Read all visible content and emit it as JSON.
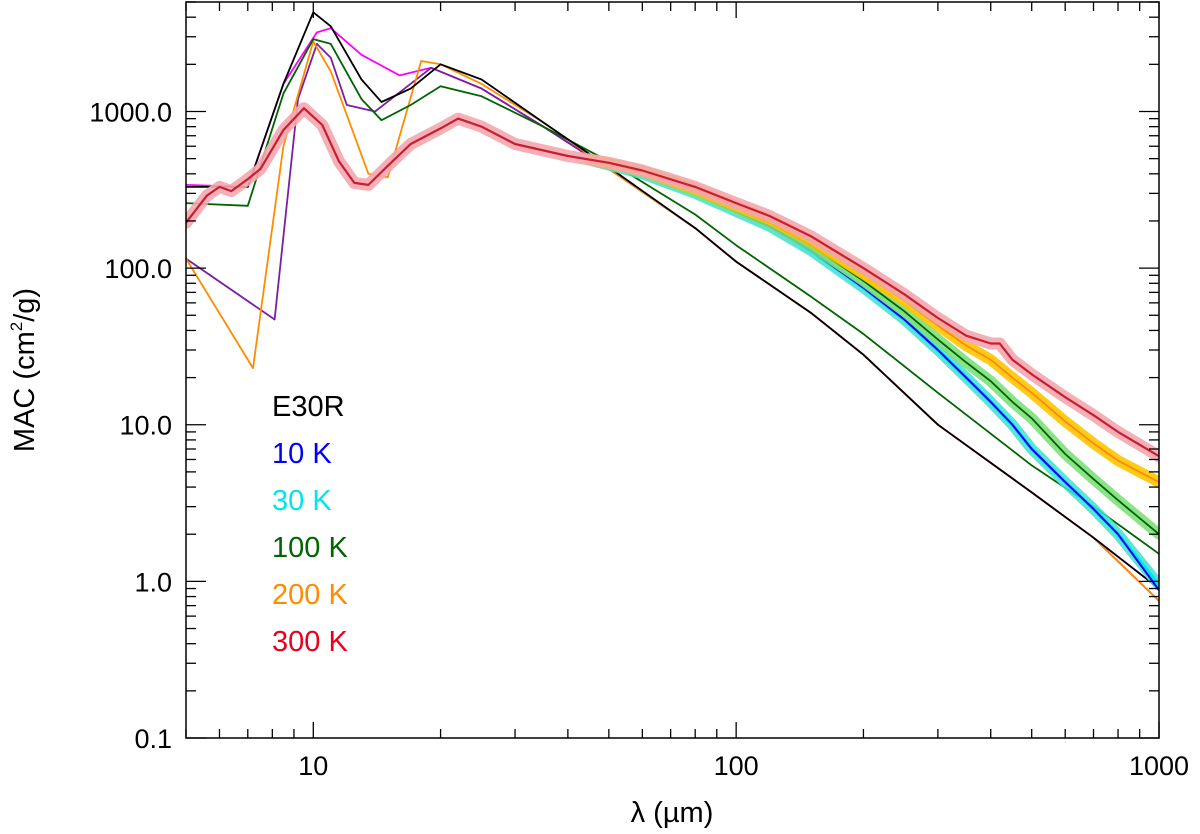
{
  "chart_data": {
    "type": "line",
    "title": "",
    "xlabel": "λ (µm)",
    "ylabel": {
      "prefix": "MAC (cm",
      "sup": "2",
      "suffix": "/g)"
    },
    "x_scale": "log",
    "y_scale": "log",
    "xlim": [
      5,
      1000
    ],
    "ylim": [
      0.1,
      5000
    ],
    "x_ticks": [
      {
        "value": 10,
        "label": "10"
      },
      {
        "value": 100,
        "label": "100"
      },
      {
        "value": 1000,
        "label": "1000"
      }
    ],
    "y_ticks": [
      {
        "value": 0.1,
        "label": "0.1"
      },
      {
        "value": 1,
        "label": "1.0"
      },
      {
        "value": 10,
        "label": "10.0"
      },
      {
        "value": 100,
        "label": "100.0"
      },
      {
        "value": 1000,
        "label": "1000.0"
      }
    ],
    "grid": false,
    "legend": {
      "position": "lower-left",
      "entries": [
        {
          "label": "E30R",
          "color": "#000000"
        },
        {
          "label": "10 K",
          "color": "#0000ff"
        },
        {
          "label": "30 K",
          "color": "#00e5ee"
        },
        {
          "label": "100 K",
          "color": "#006400"
        },
        {
          "label": "200 K",
          "color": "#ff8c00"
        },
        {
          "label": "300 K",
          "color": "#e8001c"
        }
      ]
    },
    "series": [
      {
        "name": "",
        "color": "#ff00ff",
        "width": 1.8,
        "x": [
          5,
          7,
          8.5,
          10.2,
          11,
          13,
          16,
          19,
          25,
          35,
          50,
          80,
          100,
          150,
          200,
          300,
          500,
          700,
          1000
        ],
        "y": [
          340,
          330,
          1500,
          3200,
          3400,
          2300,
          1700,
          1900,
          1400,
          800,
          430,
          180,
          110,
          52,
          28,
          10,
          3.7,
          1.9,
          0.9
        ]
      },
      {
        "name": "",
        "color": "#7a1fa2",
        "width": 1.8,
        "x": [
          5,
          8.1,
          9.2,
          10.2,
          11,
          12,
          14,
          19,
          25,
          35,
          50,
          80,
          100,
          150,
          200,
          300,
          500,
          700,
          1000
        ],
        "y": [
          115,
          47,
          1200,
          2700,
          2200,
          1100,
          1000,
          1900,
          1400,
          800,
          430,
          180,
          110,
          52,
          28,
          10,
          3.7,
          1.9,
          0.75
        ]
      },
      {
        "name": "",
        "color": "#ff8c00",
        "width": 1.8,
        "x": [
          5,
          7.2,
          8.5,
          10,
          11,
          13.5,
          15,
          18,
          20,
          25,
          35,
          50,
          80,
          100,
          150,
          200,
          300,
          500,
          700,
          1000
        ],
        "y": [
          115,
          23,
          600,
          2800,
          1800,
          400,
          380,
          2100,
          2000,
          1500,
          850,
          430,
          180,
          110,
          52,
          28,
          10,
          3.7,
          1.9,
          0.75
        ]
      },
      {
        "name": "",
        "color": "#006400",
        "width": 1.8,
        "x": [
          5,
          7,
          8.5,
          10,
          11,
          13,
          14.5,
          17,
          20,
          25,
          35,
          50,
          80,
          100,
          150,
          200,
          300,
          500,
          700,
          1000
        ],
        "y": [
          260,
          250,
          1300,
          2900,
          2700,
          1200,
          880,
          1100,
          1450,
          1250,
          800,
          480,
          220,
          140,
          66,
          38,
          16,
          5.5,
          3,
          1.5
        ]
      },
      {
        "name": "",
        "color": "#000000",
        "width": 1.8,
        "x": [
          5,
          7,
          8.5,
          10,
          11,
          13,
          14.5,
          17,
          20,
          25,
          35,
          50,
          80,
          100,
          150,
          200,
          300,
          500,
          700,
          1000
        ],
        "y": [
          330,
          330,
          1500,
          4300,
          3500,
          1600,
          1150,
          1400,
          2000,
          1600,
          850,
          440,
          180,
          110,
          52,
          28,
          10,
          3.7,
          1.9,
          0.9
        ]
      },
      {
        "name": "",
        "color": "#40e0d0",
        "width": 11,
        "opacity": 0.85,
        "x": [
          45,
          60,
          80,
          100,
          120,
          150,
          200,
          250,
          300,
          350,
          400,
          450,
          500,
          600,
          700,
          800,
          1000
        ],
        "y": [
          490,
          400,
          300,
          230,
          185,
          130,
          75,
          47,
          30,
          20,
          14,
          10,
          7,
          4.3,
          2.9,
          2.0,
          0.95
        ]
      },
      {
        "name": "",
        "color": "#00e5ee",
        "width": 3.5,
        "x": [
          45,
          60,
          80,
          100,
          120,
          150,
          200,
          250,
          300,
          350,
          400,
          450,
          500,
          600,
          700,
          800,
          1000
        ],
        "y": [
          490,
          400,
          300,
          230,
          185,
          130,
          75,
          47,
          30,
          20,
          14,
          10,
          7,
          4.3,
          2.9,
          2.0,
          0.95
        ]
      },
      {
        "name": "",
        "color": "#0000ff",
        "width": 2,
        "x": [
          45,
          60,
          80,
          100,
          120,
          150,
          200,
          250,
          300,
          350,
          400,
          450,
          500,
          600,
          700,
          800,
          1000
        ],
        "y": [
          490,
          400,
          300,
          230,
          185,
          130,
          75,
          47,
          30,
          20,
          14,
          10,
          7,
          4.3,
          2.9,
          2.0,
          0.88
        ]
      },
      {
        "name": "",
        "color": "#7ee07a",
        "width": 11,
        "opacity": 0.9,
        "x": [
          45,
          60,
          80,
          100,
          120,
          150,
          200,
          250,
          300,
          350,
          400,
          450,
          500,
          600,
          700,
          800,
          1000
        ],
        "y": [
          490,
          410,
          310,
          240,
          195,
          140,
          83,
          53,
          35,
          25,
          19,
          14,
          11,
          6.5,
          4.5,
          3.3,
          2.0
        ]
      },
      {
        "name": "",
        "color": "#006400",
        "width": 1.8,
        "x": [
          45,
          60,
          80,
          100,
          120,
          150,
          200,
          250,
          300,
          350,
          400,
          450,
          500,
          600,
          700,
          800,
          1000
        ],
        "y": [
          490,
          410,
          310,
          240,
          195,
          140,
          83,
          53,
          35,
          25,
          19,
          14,
          11,
          6.5,
          4.5,
          3.3,
          2.0
        ]
      },
      {
        "name": "",
        "color": "#ffc400",
        "width": 11,
        "opacity": 0.9,
        "x": [
          45,
          60,
          80,
          100,
          120,
          150,
          200,
          250,
          300,
          350,
          400,
          450,
          500,
          600,
          700,
          800,
          1000
        ],
        "y": [
          495,
          420,
          320,
          250,
          205,
          150,
          92,
          62,
          43,
          32,
          26,
          20,
          16,
          10.5,
          7.6,
          5.9,
          4.3
        ]
      },
      {
        "name": "",
        "color": "#ff8c00",
        "width": 1.8,
        "x": [
          45,
          60,
          80,
          100,
          120,
          150,
          200,
          250,
          300,
          350,
          400,
          450,
          500,
          600,
          700,
          800,
          1000
        ],
        "y": [
          495,
          420,
          320,
          250,
          205,
          150,
          92,
          62,
          43,
          32,
          26,
          20,
          16,
          10.5,
          7.6,
          5.9,
          4.3
        ]
      },
      {
        "name": "",
        "color": "#f4a6ae",
        "width": 12,
        "opacity": 0.9,
        "x": [
          5,
          5.6,
          6,
          6.4,
          7,
          7.5,
          8.5,
          9.5,
          10.5,
          11.5,
          12.5,
          13.5,
          15,
          17,
          20,
          22,
          25,
          30,
          40,
          50,
          60,
          80,
          100,
          120,
          150,
          200,
          250,
          300,
          350,
          400,
          420,
          450,
          500,
          600,
          700,
          800,
          1000
        ],
        "y": [
          195,
          290,
          330,
          310,
          370,
          430,
          760,
          1050,
          820,
          480,
          350,
          340,
          450,
          620,
          780,
          900,
          800,
          620,
          520,
          470,
          420,
          330,
          260,
          215,
          160,
          100,
          68,
          48,
          37,
          33,
          33,
          26,
          21,
          15,
          11.5,
          9,
          6.3
        ]
      },
      {
        "name": "",
        "color": "#c81e32",
        "width": 2.2,
        "x": [
          5,
          5.6,
          6,
          6.4,
          7,
          7.5,
          8.5,
          9.5,
          10.5,
          11.5,
          12.5,
          13.5,
          15,
          17,
          20,
          22,
          25,
          30,
          40,
          50,
          60,
          80,
          100,
          120,
          150,
          200,
          250,
          300,
          350,
          400,
          420,
          450,
          500,
          600,
          700,
          800,
          1000
        ],
        "y": [
          195,
          290,
          330,
          310,
          370,
          430,
          760,
          1050,
          820,
          480,
          350,
          340,
          450,
          620,
          780,
          900,
          800,
          620,
          520,
          470,
          420,
          330,
          260,
          215,
          160,
          100,
          68,
          48,
          37,
          33,
          33,
          26,
          21,
          15,
          11.5,
          9,
          6.3
        ]
      }
    ]
  }
}
